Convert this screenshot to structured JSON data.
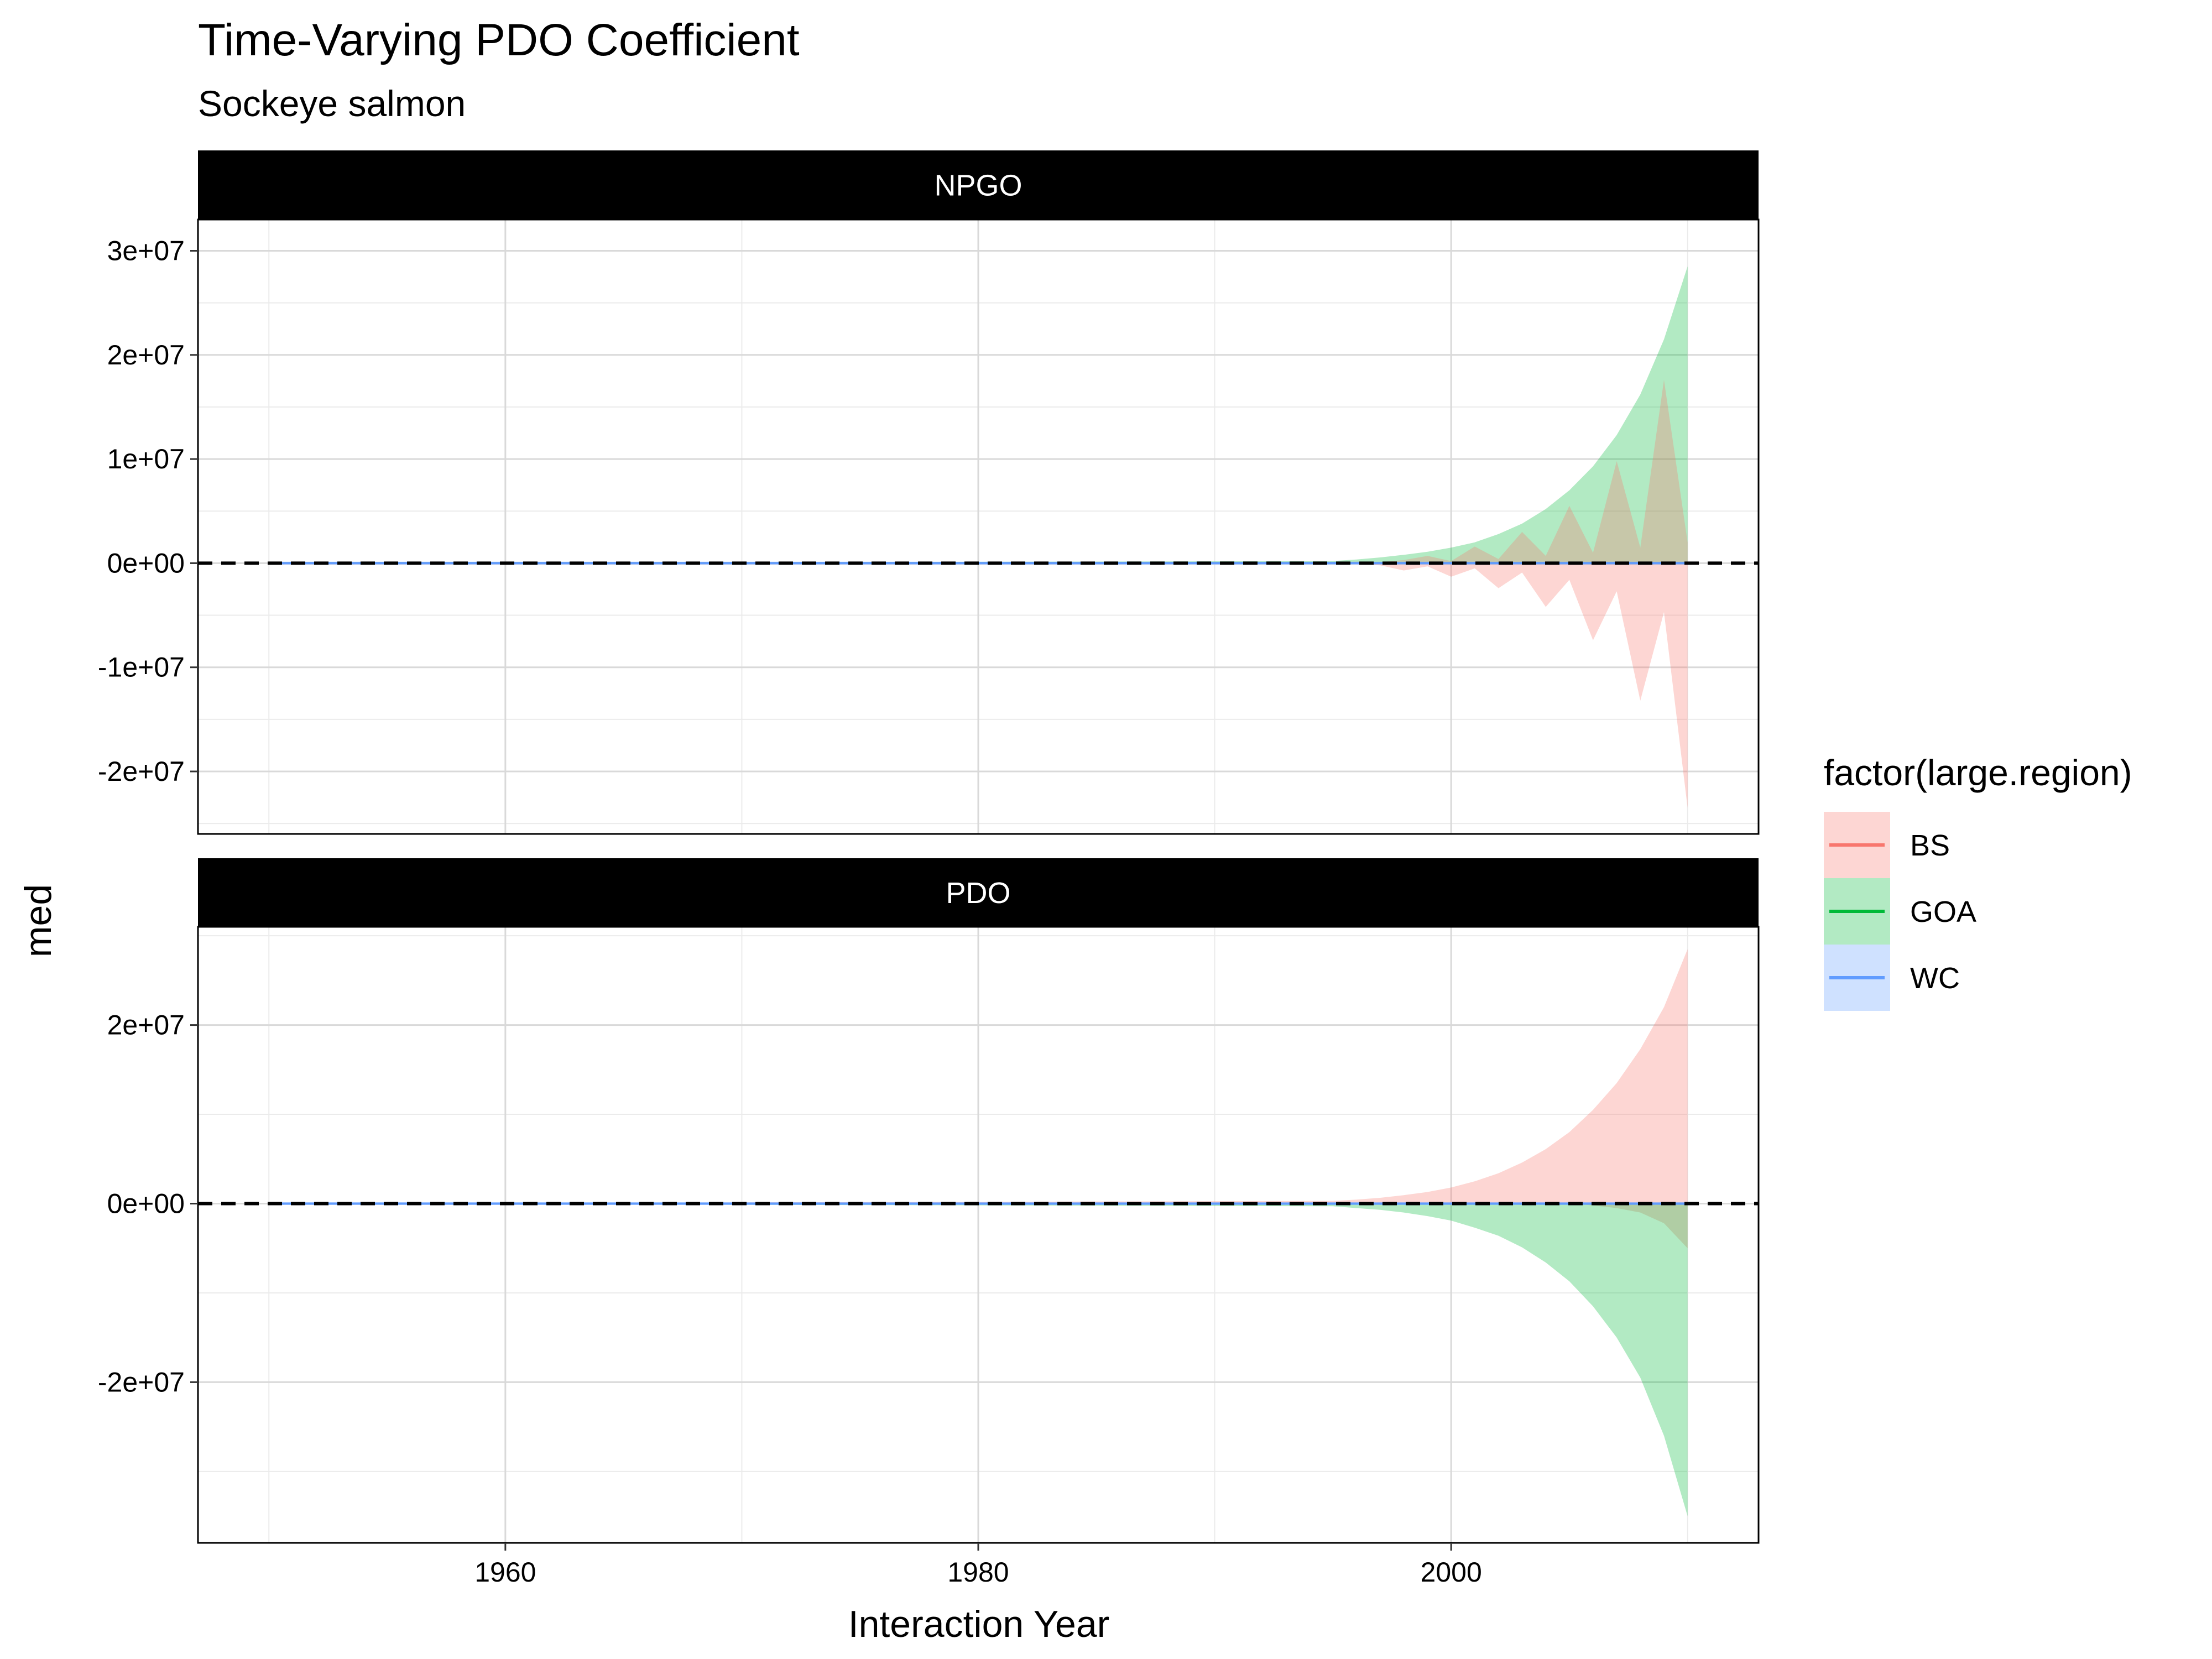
{
  "chart_data": {
    "type": "area",
    "title": "Time-Varying PDO Coefficient",
    "subtitle": "Sockeye salmon",
    "xlabel": "Interaction Year",
    "ylabel": "med",
    "xlim": [
      1947,
      2013
    ],
    "x_ticks": [
      {
        "value": 1960,
        "label": "1960"
      },
      {
        "value": 1980,
        "label": "1980"
      },
      {
        "value": 2000,
        "label": "2000"
      }
    ],
    "x_minor": [
      1950,
      1970,
      1990,
      2010
    ],
    "legend": {
      "title": "factor(large.region)",
      "placement": "right",
      "entries": [
        {
          "name": "BS",
          "line": "#F8766D",
          "fill": "#F8766D"
        },
        {
          "name": "GOA",
          "line": "#00BA38",
          "fill": "#00BA38"
        },
        {
          "name": "WC",
          "line": "#619CFF",
          "fill": "#619CFF"
        }
      ]
    },
    "zero_line": {
      "style": "dashed",
      "color": "#000000"
    },
    "facets": [
      {
        "label": "NPGO",
        "ylim": [
          -26000000.0,
          33000000.0
        ],
        "y_ticks": [
          {
            "value": -20000000.0,
            "label": "-2e+07"
          },
          {
            "value": -10000000.0,
            "label": "-1e+07"
          },
          {
            "value": 0,
            "label": "0e+00"
          },
          {
            "value": 10000000.0,
            "label": "1e+07"
          },
          {
            "value": 20000000.0,
            "label": "2e+07"
          },
          {
            "value": 30000000.0,
            "label": "3e+07"
          }
        ],
        "y_minor": [
          -25000000.0,
          -15000000.0,
          -5000000.0,
          5000000.0,
          15000000.0,
          25000000.0
        ],
        "series": [
          {
            "name": "GOA",
            "x": [
              1950,
              1995,
              1996,
              1997,
              1998,
              1999,
              2000,
              2001,
              2002,
              2003,
              2004,
              2005,
              2006,
              2007,
              2008,
              2009,
              2010
            ],
            "upper": [
              0,
              200000,
              350000,
              550000,
              800000,
              1100000,
              1500000,
              2000000,
              2800000,
              3800000,
              5200000,
              7000000,
              9300000,
              12300000,
              16200000,
              21500000,
              28500000
            ],
            "lower": [
              0,
              0,
              0,
              0,
              0,
              0,
              0,
              0,
              0,
              0,
              0,
              0,
              0,
              0,
              0,
              0,
              0
            ]
          },
          {
            "name": "BS",
            "x": [
              1950,
              1995,
              1996,
              1997,
              1998,
              1999,
              2000,
              2001,
              2002,
              2003,
              2004,
              2005,
              2006,
              2007,
              2008,
              2009,
              2010
            ],
            "upper": [
              0,
              0,
              150000,
              100000,
              300000,
              700000,
              200000,
              1600000,
              400000,
              3000000,
              700000,
              5500000,
              1000000,
              9800000,
              1500000,
              17600000,
              2000000
            ],
            "lower": [
              0,
              0,
              -100000,
              -200000,
              -700000,
              -300000,
              -1300000,
              -500000,
              -2400000,
              -900000,
              -4200000,
              -1600000,
              -7400000,
              -2700000,
              -13200000,
              -4700000,
              -23500000
            ]
          },
          {
            "name": "WC",
            "x": [
              1950,
              2010
            ],
            "upper": [
              150000,
              150000
            ],
            "lower": [
              -150000,
              -150000
            ]
          }
        ]
      },
      {
        "label": "PDO",
        "ylim": [
          -38000000.0,
          31000000.0
        ],
        "y_ticks": [
          {
            "value": -20000000.0,
            "label": "-2e+07"
          },
          {
            "value": 0,
            "label": "0e+00"
          },
          {
            "value": 20000000.0,
            "label": "2e+07"
          }
        ],
        "y_minor": [
          -30000000.0,
          -10000000.0,
          10000000.0,
          30000000.0
        ],
        "series": [
          {
            "name": "BS",
            "x": [
              1950,
              1995,
              1996,
              1997,
              1998,
              1999,
              2000,
              2001,
              2002,
              2003,
              2004,
              2005,
              2006,
              2007,
              2008,
              2009,
              2010
            ],
            "upper": [
              0,
              300000,
              450000,
              650000,
              950000,
              1300000,
              1800000,
              2500000,
              3400000,
              4600000,
              6100000,
              8000000,
              10500000,
              13500000,
              17300000,
              22000000,
              28500000
            ],
            "lower": [
              0,
              0,
              0,
              0,
              0,
              0,
              0,
              0,
              0,
              0,
              0,
              0,
              -200000,
              -500000,
              -1000000,
              -2200000,
              -5000000
            ]
          },
          {
            "name": "GOA",
            "x": [
              1950,
              1995,
              1996,
              1997,
              1998,
              1999,
              2000,
              2001,
              2002,
              2003,
              2004,
              2005,
              2006,
              2007,
              2008,
              2009,
              2010
            ],
            "upper": [
              0,
              0,
              0,
              0,
              0,
              0,
              0,
              0,
              0,
              0,
              0,
              0,
              0,
              0,
              0,
              0,
              0
            ],
            "lower": [
              0,
              -300000,
              -500000,
              -700000,
              -1000000,
              -1400000,
              -1900000,
              -2700000,
              -3600000,
              -4900000,
              -6600000,
              -8700000,
              -11500000,
              -15000000,
              -19500000,
              -26000000,
              -35000000
            ]
          },
          {
            "name": "WC",
            "x": [
              1950,
              2010
            ],
            "upper": [
              150000,
              150000
            ],
            "lower": [
              -150000,
              -150000
            ]
          }
        ]
      }
    ]
  }
}
